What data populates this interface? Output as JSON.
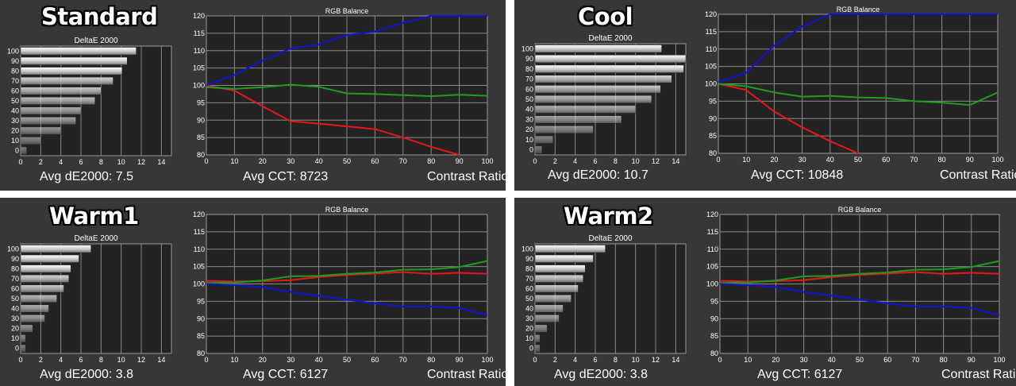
{
  "panels": [
    {
      "mode": "Standard",
      "avg_de_label": "Avg dE2000: 7.5",
      "avg_cct_label": "Avg CCT: 8723",
      "contrast_label": "Contrast Ratio"
    },
    {
      "mode": "Cool",
      "avg_de_label": "Avg dE2000: 10.7",
      "avg_cct_label": "Avg CCT: 10848",
      "contrast_label": "Contrast Ratio"
    },
    {
      "mode": "Warm1",
      "avg_de_label": "Avg dE2000: 3.8",
      "avg_cct_label": "Avg CCT: 6127",
      "contrast_label": "Contrast Ratio"
    },
    {
      "mode": "Warm2",
      "avg_de_label": "Avg dE2000: 3.8",
      "avg_cct_label": "Avg CCT: 6127",
      "contrast_label": "Contrast Ratio"
    }
  ],
  "colors": {
    "red": "#e8161c",
    "green": "#1e9e1e",
    "blue": "#1313d8",
    "plot_bg": "#232323",
    "grid": "#8a8a8a"
  },
  "chart_data": [
    {
      "type": "bar",
      "panel": "Standard",
      "title": "DeltaE 2000",
      "categories": [
        "100",
        "90",
        "80",
        "70",
        "60",
        "50",
        "40",
        "30",
        "20",
        "10",
        "0"
      ],
      "values": [
        11.5,
        10.6,
        10.1,
        9.2,
        8.0,
        7.4,
        6.0,
        5.5,
        4.0,
        2.0,
        0.6
      ],
      "xlim": [
        0,
        15
      ],
      "xticks": [
        0,
        2,
        4,
        6,
        8,
        10,
        12,
        14
      ],
      "orientation": "horizontal"
    },
    {
      "type": "line",
      "panel": "Standard",
      "title": "RGB Balance",
      "x": [
        0,
        10,
        20,
        30,
        40,
        50,
        60,
        70,
        80,
        90,
        100
      ],
      "xlim": [
        0,
        100
      ],
      "ylim": [
        80,
        120
      ],
      "xticks": [
        0,
        10,
        20,
        30,
        40,
        50,
        60,
        70,
        80,
        90,
        100
      ],
      "yticks": [
        80,
        85,
        90,
        95,
        100,
        105,
        110,
        115,
        120
      ],
      "series": [
        {
          "color": "red",
          "values": [
            100,
            98.5,
            94,
            89.7,
            89,
            88.2,
            87.4,
            85,
            82.3,
            80,
            null
          ]
        },
        {
          "color": "green",
          "values": [
            99.5,
            99,
            99.5,
            100.2,
            99.6,
            97.7,
            97.5,
            97.2,
            96.9,
            97.3,
            97
          ]
        },
        {
          "color": "blue",
          "values": [
            100,
            103,
            107.1,
            110.6,
            111.8,
            114.5,
            115.5,
            118,
            120,
            120,
            120
          ]
        }
      ]
    },
    {
      "type": "bar",
      "panel": "Cool",
      "title": "DeltaE 2000",
      "categories": [
        "100",
        "90",
        "80",
        "70",
        "60",
        "50",
        "40",
        "30",
        "20",
        "10",
        "0"
      ],
      "values": [
        12.6,
        15.0,
        14.8,
        13.6,
        12.5,
        11.6,
        10.0,
        8.6,
        5.8,
        1.8,
        0.7
      ],
      "xlim": [
        0,
        15
      ],
      "xticks": [
        0,
        2,
        4,
        6,
        8,
        10,
        12,
        14
      ],
      "orientation": "horizontal"
    },
    {
      "type": "line",
      "panel": "Cool",
      "title": "RGB Balance",
      "x": [
        0,
        10,
        20,
        30,
        40,
        50,
        60,
        70,
        80,
        90,
        100
      ],
      "xlim": [
        0,
        100
      ],
      "ylim": [
        80,
        120
      ],
      "xticks": [
        0,
        10,
        20,
        30,
        40,
        50,
        60,
        70,
        80,
        90,
        100
      ],
      "yticks": [
        80,
        85,
        90,
        95,
        100,
        105,
        110,
        115,
        120
      ],
      "series": [
        {
          "color": "red",
          "values": [
            100,
            98.2,
            92,
            87.5,
            83.5,
            80,
            null,
            null,
            null,
            null,
            null
          ]
        },
        {
          "color": "green",
          "values": [
            100,
            99.3,
            97.5,
            96.3,
            96.5,
            96.1,
            95.9,
            95,
            94.6,
            93.9,
            97.5
          ]
        },
        {
          "color": "blue",
          "values": [
            100.5,
            103.2,
            111,
            116.5,
            120,
            120,
            120,
            120,
            120,
            120,
            120
          ]
        }
      ]
    },
    {
      "type": "bar",
      "panel": "Warm1",
      "title": "DeltaE 2000",
      "categories": [
        "100",
        "90",
        "80",
        "70",
        "60",
        "50",
        "40",
        "30",
        "20",
        "10",
        "0"
      ],
      "values": [
        7.0,
        5.8,
        5.0,
        4.8,
        4.3,
        3.6,
        2.8,
        2.4,
        1.2,
        0.5,
        0.5
      ],
      "xlim": [
        0,
        15
      ],
      "xticks": [
        0,
        2,
        4,
        6,
        8,
        10,
        12,
        14
      ],
      "orientation": "horizontal"
    },
    {
      "type": "line",
      "panel": "Warm1",
      "title": "RGB Balance",
      "x": [
        0,
        10,
        20,
        30,
        40,
        50,
        60,
        70,
        80,
        90,
        100
      ],
      "xlim": [
        0,
        100
      ],
      "ylim": [
        80,
        120
      ],
      "xticks": [
        0,
        10,
        20,
        30,
        40,
        50,
        60,
        70,
        80,
        90,
        100
      ],
      "yticks": [
        80,
        85,
        90,
        95,
        100,
        105,
        110,
        115,
        120
      ],
      "series": [
        {
          "color": "red",
          "values": [
            100.9,
            100.7,
            100.8,
            101.1,
            102,
            102.6,
            103,
            103.4,
            102.9,
            103.2,
            102.9
          ]
        },
        {
          "color": "green",
          "values": [
            100.3,
            100.4,
            101,
            102.2,
            102.3,
            102.9,
            103.3,
            104.1,
            104.2,
            104.9,
            106.6
          ]
        },
        {
          "color": "blue",
          "values": [
            100,
            99.7,
            99.1,
            97.7,
            96.6,
            95.5,
            94.4,
            93.5,
            93.5,
            93.1,
            91
          ]
        }
      ]
    },
    {
      "type": "bar",
      "panel": "Warm2",
      "title": "DeltaE 2000",
      "categories": [
        "100",
        "90",
        "80",
        "70",
        "60",
        "50",
        "40",
        "30",
        "20",
        "10",
        "0"
      ],
      "values": [
        7.0,
        5.8,
        5.0,
        4.8,
        4.3,
        3.6,
        2.8,
        2.4,
        1.2,
        0.5,
        0.5
      ],
      "xlim": [
        0,
        15
      ],
      "xticks": [
        0,
        2,
        4,
        6,
        8,
        10,
        12,
        14
      ],
      "orientation": "horizontal"
    },
    {
      "type": "line",
      "panel": "Warm2",
      "title": "RGB Balance",
      "x": [
        0,
        10,
        20,
        30,
        40,
        50,
        60,
        70,
        80,
        90,
        100
      ],
      "xlim": [
        0,
        100
      ],
      "ylim": [
        80,
        120
      ],
      "xticks": [
        0,
        10,
        20,
        30,
        40,
        50,
        60,
        70,
        80,
        90,
        100
      ],
      "yticks": [
        80,
        85,
        90,
        95,
        100,
        105,
        110,
        115,
        120
      ],
      "series": [
        {
          "color": "red",
          "values": [
            100.9,
            100.7,
            100.8,
            101.1,
            102,
            102.6,
            103,
            103.4,
            102.9,
            103.2,
            102.9
          ]
        },
        {
          "color": "green",
          "values": [
            100.3,
            100.4,
            101,
            102.2,
            102.3,
            102.9,
            103.3,
            104.1,
            104.2,
            104.9,
            106.6
          ]
        },
        {
          "color": "blue",
          "values": [
            100,
            99.7,
            99.1,
            97.7,
            96.6,
            95.5,
            94.4,
            93.5,
            93.5,
            93.1,
            91
          ]
        }
      ]
    }
  ]
}
